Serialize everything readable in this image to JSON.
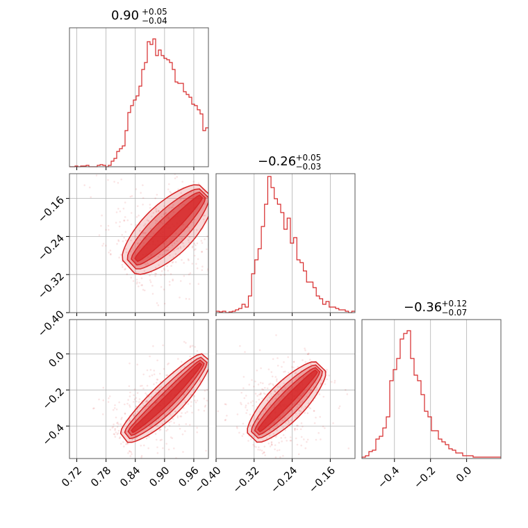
{
  "chart_data": {
    "type": "corner",
    "color": "#d62728",
    "grid": true,
    "parameters": [
      {
        "title": {
          "base": "0.90",
          "plus": "+0.05",
          "minus": "−0.04"
        },
        "range": [
          0.705,
          0.99
        ],
        "ticks": [
          {
            "v": 0.72,
            "label": "0.72"
          },
          {
            "v": 0.78,
            "label": "0.78"
          },
          {
            "v": 0.84,
            "label": "0.84"
          },
          {
            "v": 0.9,
            "label": "0.90"
          },
          {
            "v": 0.96,
            "label": "0.96"
          }
        ],
        "hist": {
          "range": [
            0.705,
            0.99
          ],
          "counts": [
            0,
            0,
            0.005,
            0,
            0.005,
            0.005,
            0.01,
            0,
            0,
            0,
            0.01,
            0.015,
            0.01,
            0,
            0.01,
            0.04,
            0.06,
            0.11,
            0.13,
            0.15,
            0.26,
            0.39,
            0.44,
            0.48,
            0.51,
            0.58,
            0.7,
            0.75,
            0.9,
            0.88,
            0.92,
            0.8,
            0.84,
            0.8,
            0.78,
            0.77,
            0.75,
            0.7,
            0.61,
            0.6,
            0.6,
            0.54,
            0.52,
            0.5,
            0.45,
            0.44,
            0.41,
            0.38,
            0.26,
            0.28
          ]
        }
      },
      {
        "title": {
          "base": "−0.26",
          "plus": "+0.05",
          "minus": "−0.03"
        },
        "range": [
          -0.4,
          -0.108
        ],
        "ticks": [
          {
            "v": -0.4,
            "label": "−0.40"
          },
          {
            "v": -0.32,
            "label": "−0.32"
          },
          {
            "v": -0.24,
            "label": "−0.24"
          },
          {
            "v": -0.16,
            "label": "−0.16"
          }
        ],
        "hist": {
          "range": [
            -0.4,
            -0.108
          ],
          "counts": [
            0.01,
            0.005,
            0.01,
            0,
            0.005,
            0.01,
            0.02,
            0.03,
            0.06,
            0.04,
            0.12,
            0.28,
            0.38,
            0.46,
            0.62,
            0.78,
            0.98,
            0.9,
            0.82,
            0.78,
            0.72,
            0.6,
            0.68,
            0.5,
            0.54,
            0.38,
            0.36,
            0.3,
            0.22,
            0.22,
            0.18,
            0.12,
            0.1,
            0.06,
            0.08,
            0.04,
            0.04,
            0.03,
            0.02,
            0.02,
            0.01,
            0,
            0.01
          ]
        }
      },
      {
        "title": {
          "base": "−0.36",
          "plus": "+0.12",
          "minus": "−0.07"
        },
        "range": [
          -0.58,
          0.19
        ],
        "ticks": [
          {
            "v": -0.4,
            "label": "−0.4"
          },
          {
            "v": -0.2,
            "label": "−0.2"
          },
          {
            "v": 0.0,
            "label": "0.0"
          }
        ],
        "hist": {
          "range": [
            -0.58,
            0.19
          ],
          "counts": [
            0.01,
            0.02,
            0.05,
            0.06,
            0.14,
            0.16,
            0.22,
            0.3,
            0.56,
            0.64,
            0.72,
            0.86,
            0.9,
            0.92,
            0.72,
            0.6,
            0.56,
            0.46,
            0.34,
            0.3,
            0.2,
            0.2,
            0.14,
            0.12,
            0.1,
            0.07,
            0.06,
            0.04,
            0.04,
            0.02,
            0.02,
            0.02,
            0.01,
            0.01,
            0.01,
            0.01,
            0.01,
            0.01,
            0.01,
            0.01
          ]
        }
      }
    ],
    "scatter_pairs": [
      {
        "x": 0,
        "y": 1,
        "start": [
          0.82,
          -0.31
        ],
        "end": [
          0.985,
          -0.145
        ],
        "curve": 0.012,
        "width": 0.018
      },
      {
        "x": 0,
        "y": 2,
        "start": [
          0.81,
          -0.48
        ],
        "end": [
          0.985,
          -0.02
        ],
        "curve": 0.1,
        "width": 0.03
      },
      {
        "x": 1,
        "y": 2,
        "start": [
          -0.33,
          -0.48
        ],
        "end": [
          -0.18,
          -0.07
        ],
        "curve": 0.0,
        "width": 0.035
      }
    ]
  }
}
